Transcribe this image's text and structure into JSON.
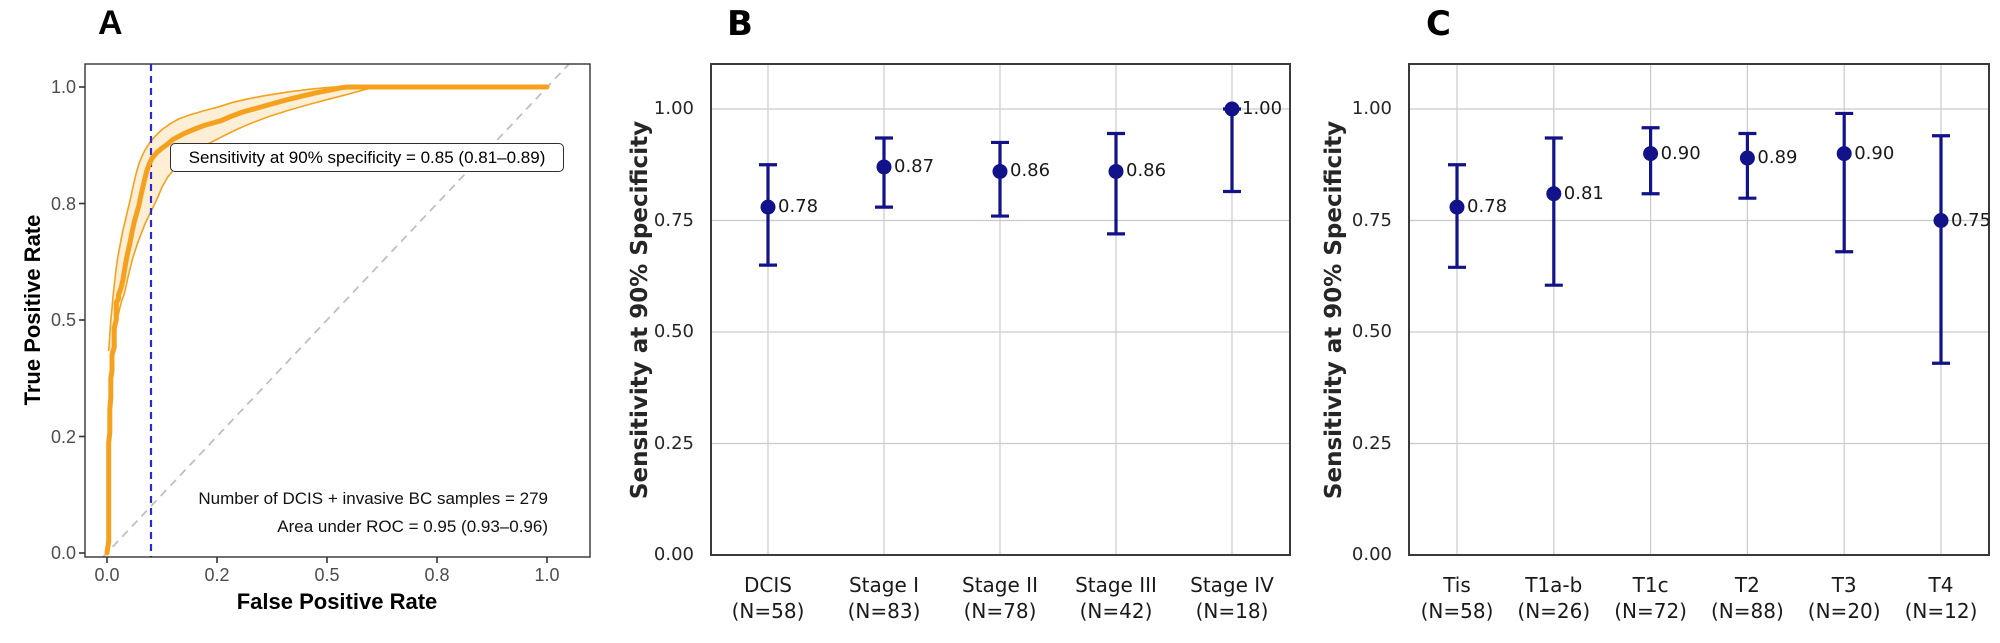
{
  "figure": {
    "background": "#FFFFFF"
  },
  "colors": {
    "roc_line": "#F6A11E",
    "roc_band": "rgba(246,161,30,0.18)",
    "point_navy": "#12128A",
    "vline_blue": "#2A2ACF",
    "diagonal_gray": "#BFBFBF",
    "grid_gray": "#CACACA",
    "border_a": "#333333",
    "border_bc": "#3A3A3A"
  },
  "chart_data": [
    {
      "panel_label": "A",
      "type": "line",
      "xlabel": "False Positive Rate",
      "ylabel": "True Positive Rate",
      "x_breaks": [
        0,
        0.2,
        0.5,
        0.8,
        1.0
      ],
      "x_tick_labels": [
        "0.0",
        "0.2",
        "0.5",
        "0.8",
        "1.0"
      ],
      "y_breaks": [
        0,
        0.2,
        0.5,
        0.8,
        1.0
      ],
      "y_tick_labels": [
        "0.0",
        "0.2",
        "0.5",
        "0.8",
        "1.0"
      ],
      "xlim": [
        0,
        1
      ],
      "ylim": [
        0,
        1
      ],
      "grid": false,
      "diagonal_reference": true,
      "vline_x": 0.08,
      "annotation_box": "Sensitivity at 90% specificity = 0.85 (0.81–0.89)",
      "notes": [
        "Number of DCIS + invasive BC samples = 279",
        "Area under ROC = 0.95 (0.93–0.96)"
      ],
      "series": [
        {
          "name": "roc-curve",
          "points": [
            [
              0,
              0
            ],
            [
              0.003,
              0.02
            ],
            [
              0.003,
              0.19
            ],
            [
              0.005,
              0.21
            ],
            [
              0.005,
              0.27
            ],
            [
              0.007,
              0.3
            ],
            [
              0.007,
              0.35
            ],
            [
              0.009,
              0.37
            ],
            [
              0.009,
              0.41
            ],
            [
              0.013,
              0.43
            ],
            [
              0.013,
              0.48
            ],
            [
              0.017,
              0.5
            ],
            [
              0.017,
              0.545
            ],
            [
              0.021,
              0.555
            ],
            [
              0.021,
              0.565
            ],
            [
              0.026,
              0.585
            ],
            [
              0.029,
              0.605
            ],
            [
              0.032,
              0.63
            ],
            [
              0.035,
              0.655
            ],
            [
              0.038,
              0.675
            ],
            [
              0.042,
              0.7
            ],
            [
              0.046,
              0.73
            ],
            [
              0.05,
              0.755
            ],
            [
              0.054,
              0.775
            ],
            [
              0.058,
              0.795
            ],
            [
              0.062,
              0.815
            ],
            [
              0.067,
              0.835
            ],
            [
              0.072,
              0.855
            ],
            [
              0.077,
              0.868
            ],
            [
              0.082,
              0.878
            ],
            [
              0.09,
              0.887
            ],
            [
              0.1,
              0.895
            ],
            [
              0.11,
              0.902
            ],
            [
              0.12,
              0.91
            ],
            [
              0.14,
              0.92
            ],
            [
              0.16,
              0.928
            ],
            [
              0.18,
              0.935
            ],
            [
              0.21,
              0.942
            ],
            [
              0.24,
              0.95
            ],
            [
              0.27,
              0.957
            ],
            [
              0.31,
              0.964
            ],
            [
              0.35,
              0.971
            ],
            [
              0.39,
              0.978
            ],
            [
              0.43,
              0.984
            ],
            [
              0.47,
              0.99
            ],
            [
              0.51,
              0.995
            ],
            [
              0.54,
              0.999
            ],
            [
              0.56,
              1.0
            ],
            [
              1.0,
              1.0
            ]
          ]
        },
        {
          "name": "ci-upper",
          "points": [
            [
              0.003,
              0.42
            ],
            [
              0.005,
              0.46
            ],
            [
              0.007,
              0.5
            ],
            [
              0.009,
              0.53
            ],
            [
              0.011,
              0.56
            ],
            [
              0.014,
              0.6
            ],
            [
              0.017,
              0.635
            ],
            [
              0.02,
              0.665
            ],
            [
              0.024,
              0.695
            ],
            [
              0.028,
              0.725
            ],
            [
              0.033,
              0.755
            ],
            [
              0.038,
              0.785
            ],
            [
              0.043,
              0.81
            ],
            [
              0.048,
              0.832
            ],
            [
              0.053,
              0.852
            ],
            [
              0.058,
              0.868
            ],
            [
              0.064,
              0.882
            ],
            [
              0.07,
              0.893
            ],
            [
              0.078,
              0.905
            ],
            [
              0.088,
              0.916
            ],
            [
              0.1,
              0.927
            ],
            [
              0.115,
              0.937
            ],
            [
              0.13,
              0.945
            ],
            [
              0.15,
              0.952
            ],
            [
              0.175,
              0.959
            ],
            [
              0.205,
              0.966
            ],
            [
              0.24,
              0.973
            ],
            [
              0.28,
              0.979
            ],
            [
              0.33,
              0.985
            ],
            [
              0.39,
              0.991
            ],
            [
              0.45,
              0.996
            ],
            [
              0.5,
              0.999
            ],
            [
              0.52,
              1.0
            ],
            [
              1.0,
              1.0
            ]
          ]
        },
        {
          "name": "ci-lower",
          "points": [
            [
              0.009,
              0.375
            ],
            [
              0.011,
              0.41
            ],
            [
              0.013,
              0.445
            ],
            [
              0.016,
              0.475
            ],
            [
              0.019,
              0.505
            ],
            [
              0.023,
              0.53
            ],
            [
              0.027,
              0.55
            ],
            [
              0.031,
              0.565
            ],
            [
              0.035,
              0.59
            ],
            [
              0.039,
              0.615
            ],
            [
              0.043,
              0.638
            ],
            [
              0.047,
              0.66
            ],
            [
              0.052,
              0.682
            ],
            [
              0.057,
              0.703
            ],
            [
              0.063,
              0.725
            ],
            [
              0.069,
              0.747
            ],
            [
              0.076,
              0.768
            ],
            [
              0.083,
              0.788
            ],
            [
              0.092,
              0.81
            ],
            [
              0.1,
              0.828
            ],
            [
              0.11,
              0.845
            ],
            [
              0.123,
              0.86
            ],
            [
              0.14,
              0.876
            ],
            [
              0.16,
              0.89
            ],
            [
              0.185,
              0.903
            ],
            [
              0.215,
              0.915
            ],
            [
              0.25,
              0.926
            ],
            [
              0.29,
              0.937
            ],
            [
              0.34,
              0.949
            ],
            [
              0.39,
              0.959
            ],
            [
              0.45,
              0.97
            ],
            [
              0.51,
              0.98
            ],
            [
              0.56,
              0.988
            ],
            [
              0.6,
              0.995
            ],
            [
              0.63,
              1.0
            ],
            [
              1.0,
              1.0
            ]
          ]
        }
      ]
    },
    {
      "panel_label": "B",
      "type": "scatter",
      "ylabel": "Sensitivity at 90% Specificity",
      "y_breaks": [
        0,
        0.25,
        0.5,
        0.75,
        1.0
      ],
      "y_tick_labels": [
        "0.00",
        "0.25",
        "0.50",
        "0.75",
        "1.00"
      ],
      "ylim": [
        0,
        1.1
      ],
      "grid": true,
      "points": [
        {
          "category": "DCIS",
          "n_label": "(N=58)",
          "value": 0.78,
          "label": "0.78",
          "ci_low": 0.65,
          "ci_high": 0.875
        },
        {
          "category": "Stage I",
          "n_label": "(N=83)",
          "value": 0.87,
          "label": "0.87",
          "ci_low": 0.78,
          "ci_high": 0.935
        },
        {
          "category": "Stage II",
          "n_label": "(N=78)",
          "value": 0.86,
          "label": "0.86",
          "ci_low": 0.76,
          "ci_high": 0.925
        },
        {
          "category": "Stage III",
          "n_label": "(N=42)",
          "value": 0.86,
          "label": "0.86",
          "ci_low": 0.72,
          "ci_high": 0.945
        },
        {
          "category": "Stage IV",
          "n_label": "(N=18)",
          "value": 1.0,
          "label": "1.00",
          "ci_low": 0.815,
          "ci_high": 1.0
        }
      ]
    },
    {
      "panel_label": "C",
      "type": "scatter",
      "ylabel": "Sensitivity at 90% Specificity",
      "y_breaks": [
        0,
        0.25,
        0.5,
        0.75,
        1.0
      ],
      "y_tick_labels": [
        "0.00",
        "0.25",
        "0.50",
        "0.75",
        "1.00"
      ],
      "ylim": [
        0,
        1.1
      ],
      "grid": true,
      "points": [
        {
          "category": "Tis",
          "n_label": "(N=58)",
          "value": 0.78,
          "label": "0.78",
          "ci_low": 0.645,
          "ci_high": 0.875
        },
        {
          "category": "T1a-b",
          "n_label": "(N=26)",
          "value": 0.81,
          "label": "0.81",
          "ci_low": 0.605,
          "ci_high": 0.935
        },
        {
          "category": "T1c",
          "n_label": "(N=72)",
          "value": 0.9,
          "label": "0.90",
          "ci_low": 0.81,
          "ci_high": 0.958
        },
        {
          "category": "T2",
          "n_label": "(N=88)",
          "value": 0.89,
          "label": "0.89",
          "ci_low": 0.8,
          "ci_high": 0.945
        },
        {
          "category": "T3",
          "n_label": "(N=20)",
          "value": 0.9,
          "label": "0.90",
          "ci_low": 0.68,
          "ci_high": 0.99
        },
        {
          "category": "T4",
          "n_label": "(N=12)",
          "value": 0.75,
          "label": "0.75",
          "ci_low": 0.43,
          "ci_high": 0.94
        }
      ]
    }
  ]
}
